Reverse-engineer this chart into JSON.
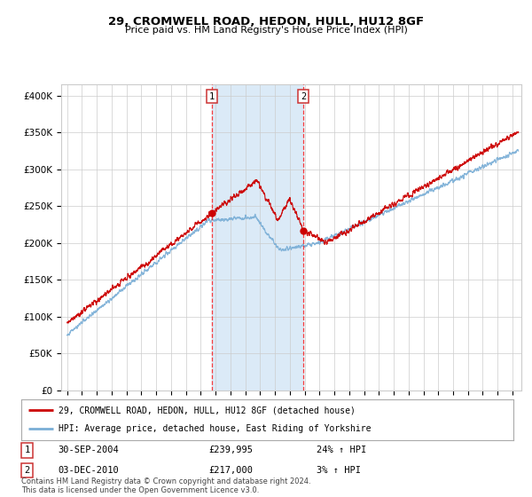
{
  "title": "29, CROMWELL ROAD, HEDON, HULL, HU12 8GF",
  "subtitle": "Price paid vs. HM Land Registry's House Price Index (HPI)",
  "ylabel_ticks": [
    "£0",
    "£50K",
    "£100K",
    "£150K",
    "£200K",
    "£250K",
    "£300K",
    "£350K",
    "£400K"
  ],
  "ytick_values": [
    0,
    50000,
    100000,
    150000,
    200000,
    250000,
    300000,
    350000,
    400000
  ],
  "ylim": [
    0,
    415000
  ],
  "sale1": {
    "date_str": "30-SEP-2004",
    "price": 239995,
    "label": "1",
    "x_year": 2004.75
  },
  "sale2": {
    "date_str": "03-DEC-2010",
    "price": 217000,
    "label": "2",
    "x_year": 2010.92
  },
  "sale1_pct": "24% ↑ HPI",
  "sale2_pct": "3% ↑ HPI",
  "legend_line1": "29, CROMWELL ROAD, HEDON, HULL, HU12 8GF (detached house)",
  "legend_line2": "HPI: Average price, detached house, East Riding of Yorkshire",
  "footer": "Contains HM Land Registry data © Crown copyright and database right 2024.\nThis data is licensed under the Open Government Licence v3.0.",
  "line_color_red": "#cc0000",
  "line_color_blue": "#7aaed6",
  "shade_color": "#dbeaf7",
  "grid_color": "#cccccc",
  "background_color": "#ffffff",
  "xlim_start": 1994.6,
  "xlim_end": 2025.6
}
